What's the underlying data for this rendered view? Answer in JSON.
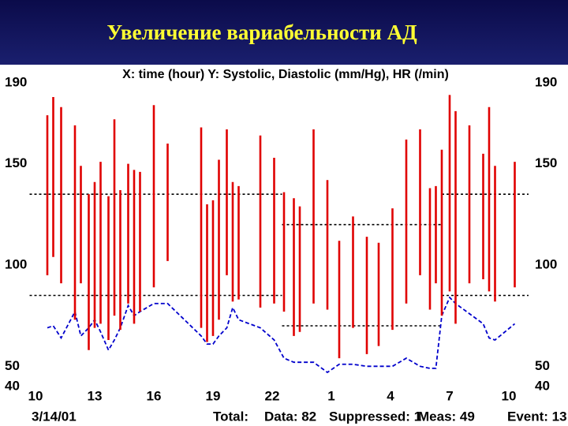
{
  "header": {
    "title": "Увеличение вариабельности АД"
  },
  "chart_data": {
    "type": "bp-range",
    "title": "X: time (hour)  Y: Systolic, Diastolic (mm/Hg), HR (/min)",
    "x": [
      10.6,
      10.9,
      11.3,
      12,
      12.3,
      12.7,
      13,
      13.3,
      13.7,
      14,
      14.3,
      14.7,
      15,
      15.3,
      16,
      16.7,
      18.4,
      18.7,
      19,
      19.3,
      19.7,
      20,
      20.3,
      21.4,
      22.1,
      22.6,
      23.1,
      23.4,
      24.1,
      24.8,
      25.4,
      26.1,
      26.8,
      27.4,
      28.1,
      28.8,
      29.5,
      30,
      30.3,
      30.6,
      31,
      31.3,
      32,
      32.7,
      33,
      33.3,
      34.3
    ],
    "series": [
      {
        "color": "#e00000",
        "values": [
          174,
          183,
          178,
          169,
          149,
          135,
          141,
          151,
          134,
          172,
          137,
          150,
          147,
          146,
          179,
          160,
          168,
          130,
          132,
          152,
          167,
          141,
          139,
          164,
          153,
          136,
          133,
          129,
          167,
          142,
          112,
          124,
          114,
          111,
          128,
          162,
          167,
          138,
          139,
          157,
          184,
          176,
          169,
          155,
          178,
          149,
          151
        ]
      },
      {
        "color": "#e00000",
        "values": [
          95,
          104,
          91,
          73,
          91,
          58,
          69,
          71,
          63,
          75,
          68,
          81,
          71,
          77,
          89,
          102,
          69,
          62,
          65,
          73,
          95,
          82,
          83,
          79,
          81,
          77,
          65,
          67,
          81,
          78,
          54,
          69,
          56,
          60,
          68,
          81,
          95,
          78,
          91,
          75,
          87,
          71,
          91,
          93,
          87,
          82,
          89
        ]
      },
      {
        "color": "#0000cc",
        "values": [
          69,
          70,
          64,
          77,
          65,
          69,
          73,
          67,
          58,
          63,
          69,
          80,
          75,
          77,
          81,
          81,
          65,
          61,
          61,
          65,
          69,
          79,
          73,
          69,
          63,
          54,
          52,
          52,
          52,
          47,
          51,
          51,
          50,
          50,
          50,
          54,
          50,
          49,
          49,
          75,
          84,
          81,
          76,
          71,
          64,
          63,
          71
        ]
      }
    ],
    "bands": [
      {
        "x": [
          9.7,
          22.5
        ],
        "values": [
          135,
          85
        ]
      },
      {
        "x": [
          22.5,
          30.6
        ],
        "values": [
          120,
          70
        ]
      },
      {
        "x": [
          30.6,
          35
        ],
        "values": [
          135,
          85
        ]
      }
    ],
    "xlim": [
      9.7,
      35
    ],
    "xticks": [
      10,
      13,
      16,
      19,
      22,
      {
        "value": 25,
        "label": "1"
      },
      {
        "value": 28,
        "label": "4"
      },
      {
        "value": 31,
        "label": "7"
      },
      {
        "value": 34,
        "label": "10"
      }
    ],
    "ylim": [
      40,
      190
    ],
    "yticks": [
      40,
      50,
      100,
      150,
      190
    ],
    "footer": [
      "3/14/01",
      "Total:",
      "Data: 82",
      "Suppressed: 1",
      "Meas: 49",
      "Event: 13"
    ]
  }
}
